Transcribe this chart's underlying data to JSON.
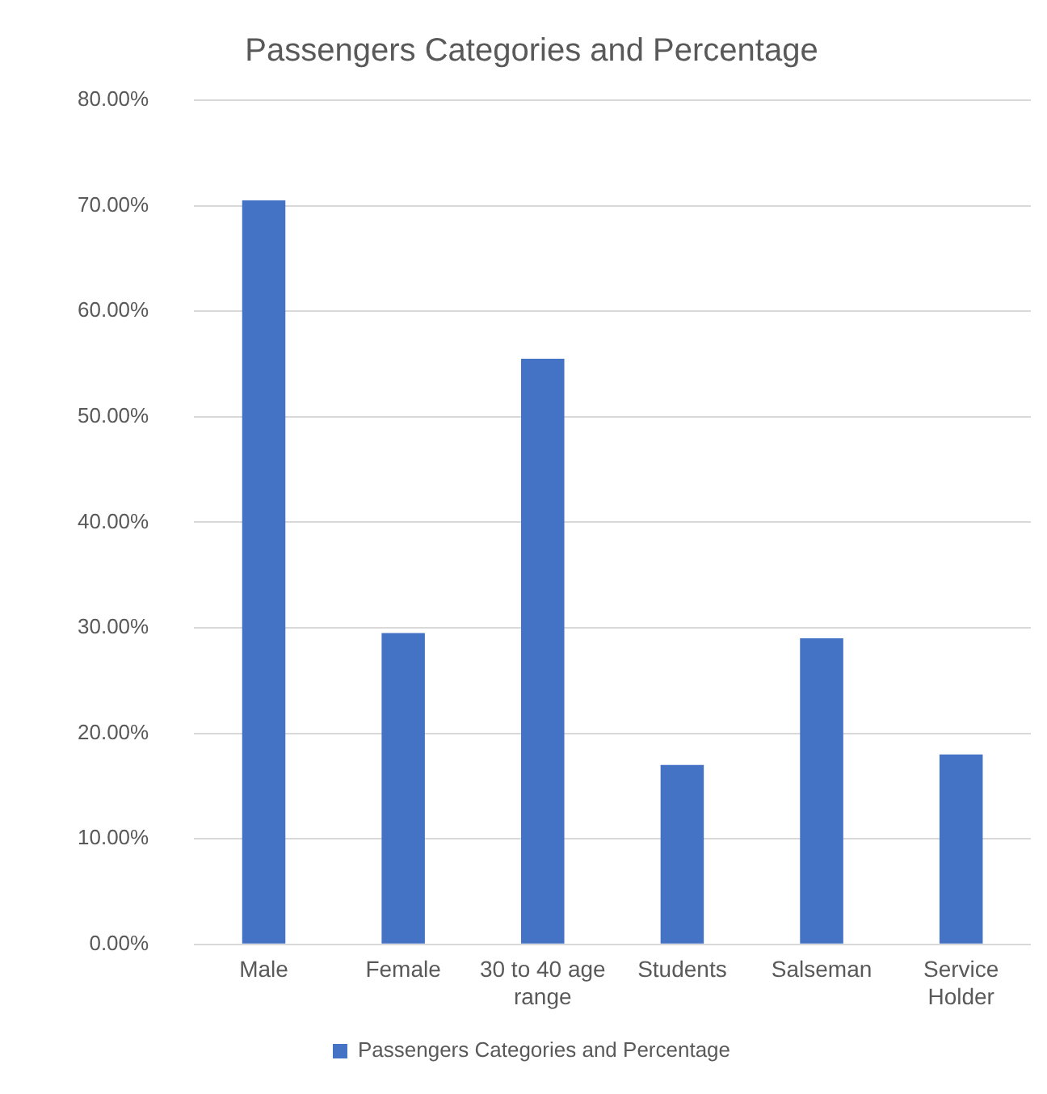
{
  "chart_data": {
    "type": "bar",
    "title": "Passengers Categories and Percentage",
    "categories": [
      "Male",
      "Female",
      "30 to 40 age range",
      "Students",
      "Salseman",
      "Service Holder"
    ],
    "series": [
      {
        "name": "Passengers Categories and Percentage",
        "color": "#4472c4",
        "values": [
          70.5,
          29.5,
          55.5,
          17,
          29,
          18
        ]
      }
    ],
    "ylim": [
      0,
      80
    ],
    "yticks": [
      {
        "value": 0,
        "label": "0.00%"
      },
      {
        "value": 10,
        "label": "10.00%"
      },
      {
        "value": 20,
        "label": "20.00%"
      },
      {
        "value": 30,
        "label": "30.00%"
      },
      {
        "value": 40,
        "label": "40.00%"
      },
      {
        "value": 50,
        "label": "50.00%"
      },
      {
        "value": 60,
        "label": "60.00%"
      },
      {
        "value": 70,
        "label": "70.00%"
      },
      {
        "value": 80,
        "label": "80.00%"
      }
    ],
    "grid": "y",
    "legend": "bottom"
  }
}
